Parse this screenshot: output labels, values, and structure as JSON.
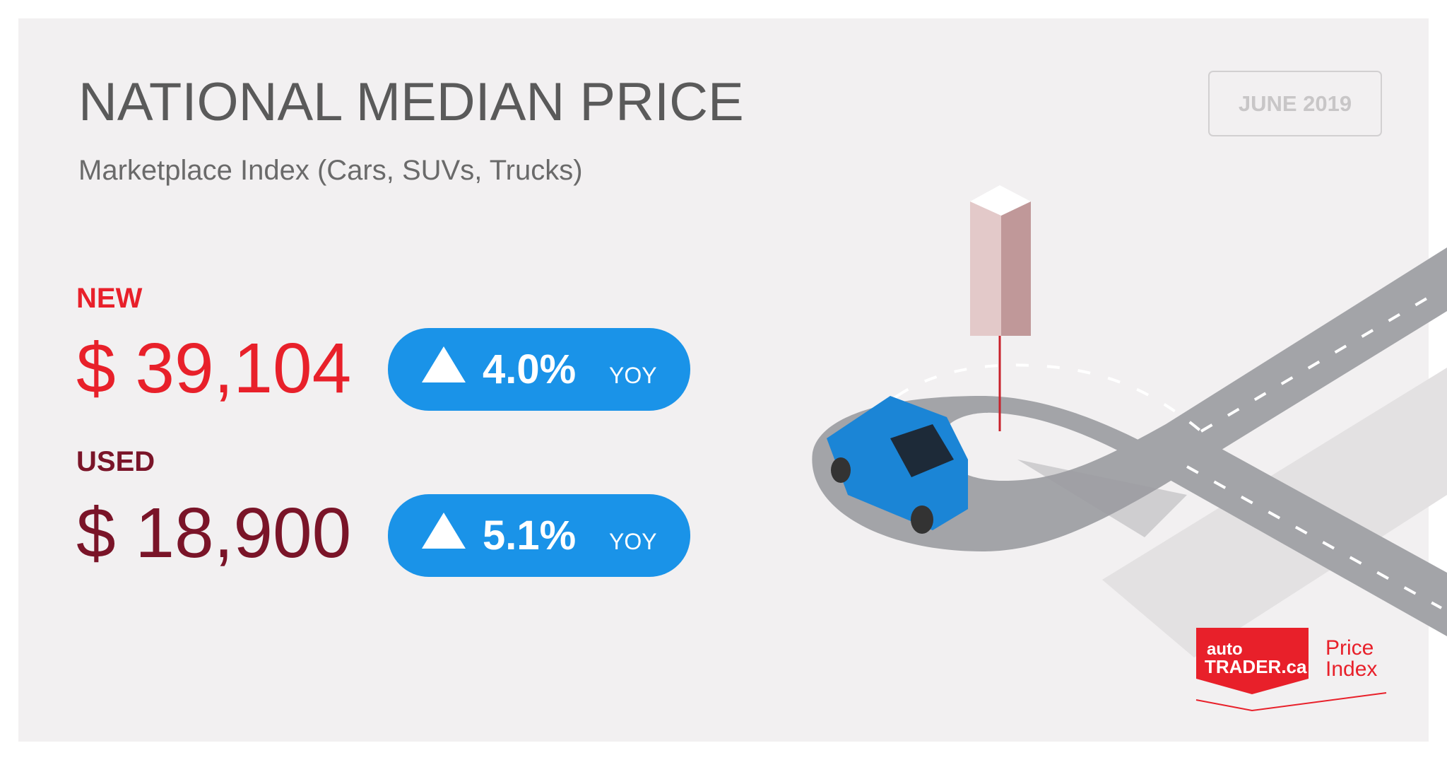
{
  "header": {
    "title": "NATIONAL MEDIAN PRICE",
    "subtitle": "Marketplace Index (Cars, SUVs, Trucks)",
    "date": "JUNE 2019"
  },
  "prices": [
    {
      "label": "NEW",
      "price": "$ 39,104",
      "change": "4.0%",
      "unit": "YOY"
    },
    {
      "label": "USED",
      "price": "$ 18,900",
      "change": "5.1%",
      "unit": "YOY"
    }
  ],
  "logo": {
    "brand_top": "auto",
    "brand_main": "TRADER.ca",
    "product_1": "Price",
    "product_2": "Index"
  }
}
